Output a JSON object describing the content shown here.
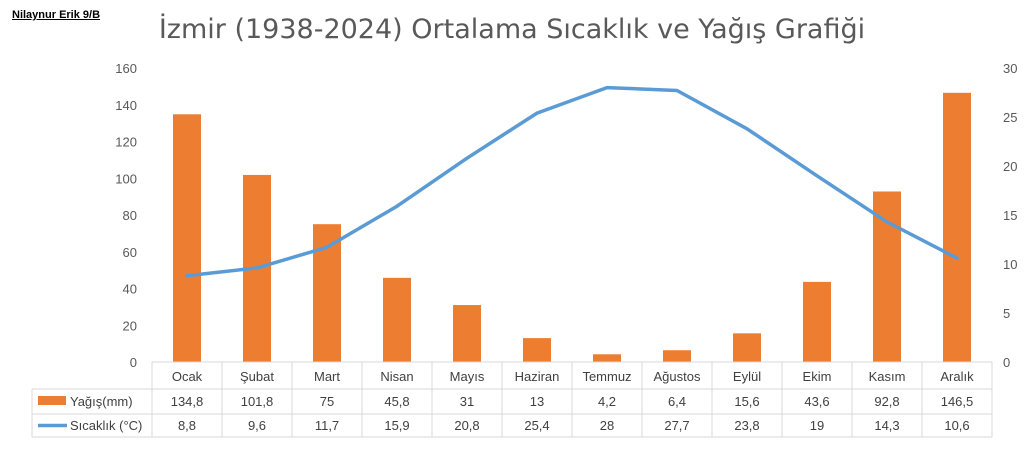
{
  "author": "Nilaynur Erik 9/B",
  "chart_data": {
    "type": "bar",
    "title": "İzmir (1938-2024) Ortalama Sıcaklık ve Yağış Grafiği",
    "categories": [
      "Ocak",
      "Şubat",
      "Mart",
      "Nisan",
      "Mayıs",
      "Haziran",
      "Temmuz",
      "Ağustos",
      "Eylül",
      "Ekim",
      "Kasım",
      "Aralık"
    ],
    "series": [
      {
        "name": "Yağış(mm)",
        "type": "bar",
        "axis": "left",
        "color": "#ED7D31",
        "values": [
          134.8,
          101.8,
          75,
          45.8,
          31,
          13,
          4.2,
          6.4,
          15.6,
          43.6,
          92.8,
          146.5
        ],
        "labels": [
          "134,8",
          "101,8",
          "75",
          "45,8",
          "31",
          "13",
          "4,2",
          "6,4",
          "15,6",
          "43,6",
          "92,8",
          "146,5"
        ]
      },
      {
        "name": "Sıcaklık  (°C)",
        "type": "line",
        "axis": "right",
        "color": "#5B9BD5",
        "values": [
          8.8,
          9.6,
          11.7,
          15.9,
          20.8,
          25.4,
          28,
          27.7,
          23.8,
          19,
          14.3,
          10.6
        ],
        "labels": [
          "8,8",
          "9,6",
          "11,7",
          "15,9",
          "20,8",
          "25,4",
          "28",
          "27,7",
          "23,8",
          "19",
          "14,3",
          "10,6"
        ]
      }
    ],
    "left_axis": {
      "ylim": [
        0,
        160
      ],
      "ticks": [
        0,
        20,
        40,
        60,
        80,
        100,
        120,
        140,
        160
      ]
    },
    "right_axis": {
      "ylim": [
        0,
        30
      ],
      "ticks": [
        0,
        5,
        10,
        15,
        20,
        25,
        30
      ]
    },
    "legend": "data-table",
    "grid": false
  }
}
